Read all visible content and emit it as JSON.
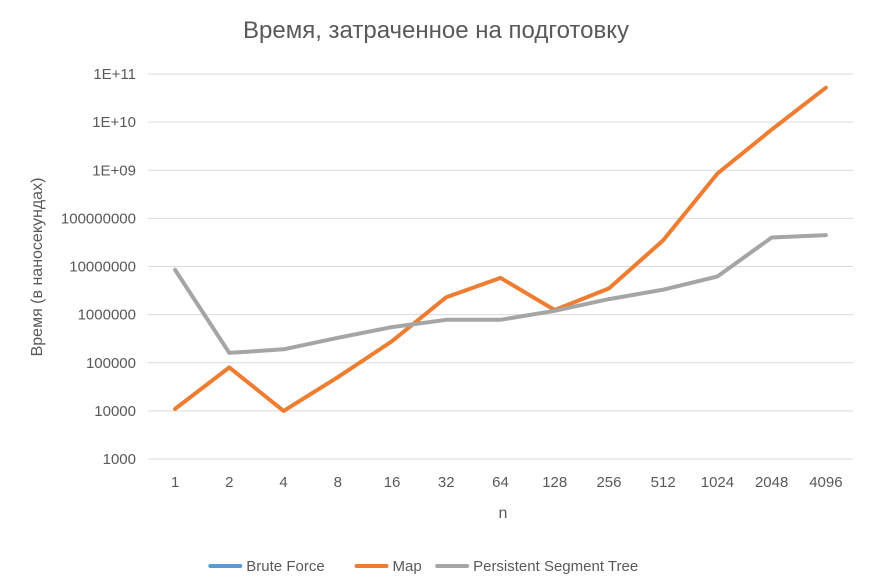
{
  "chart_data": {
    "type": "line",
    "title": "Время, затраченное на подготовку",
    "xlabel": "n",
    "ylabel": "Время (в наносекундах)",
    "yscale": "log",
    "ylim": [
      1000,
      100000000000
    ],
    "y_tick_values": [
      1000,
      10000,
      100000,
      1000000,
      10000000,
      100000000,
      1000000000,
      10000000000,
      100000000000
    ],
    "y_tick_labels": [
      "1000",
      "10000",
      "100000",
      "1000000",
      "10000000",
      "100000000",
      "1E+09",
      "1E+10",
      "1E+11"
    ],
    "categories": [
      "1",
      "2",
      "4",
      "8",
      "16",
      "32",
      "64",
      "128",
      "256",
      "512",
      "1024",
      "2048",
      "4096"
    ],
    "grid": true,
    "legend_position": "bottom",
    "series": [
      {
        "name": "Brute Force",
        "color": "#5b9bd5",
        "values": [
          null,
          null,
          null,
          null,
          null,
          null,
          null,
          null,
          null,
          null,
          null,
          null,
          null
        ]
      },
      {
        "name": "Map",
        "color": "#ed7d31",
        "values": [
          11000,
          80000,
          10000,
          50000,
          280000,
          2300000,
          5800000,
          1250000,
          3500000,
          35000000,
          850000000,
          7000000000,
          52000000000
        ]
      },
      {
        "name": "Persistent Segment Tree",
        "color": "#a5a5a5",
        "values": [
          8500000,
          160000,
          190000,
          330000,
          550000,
          780000,
          780000,
          1200000,
          2100000,
          3300000,
          6200000,
          40000000,
          45000000
        ]
      }
    ]
  }
}
